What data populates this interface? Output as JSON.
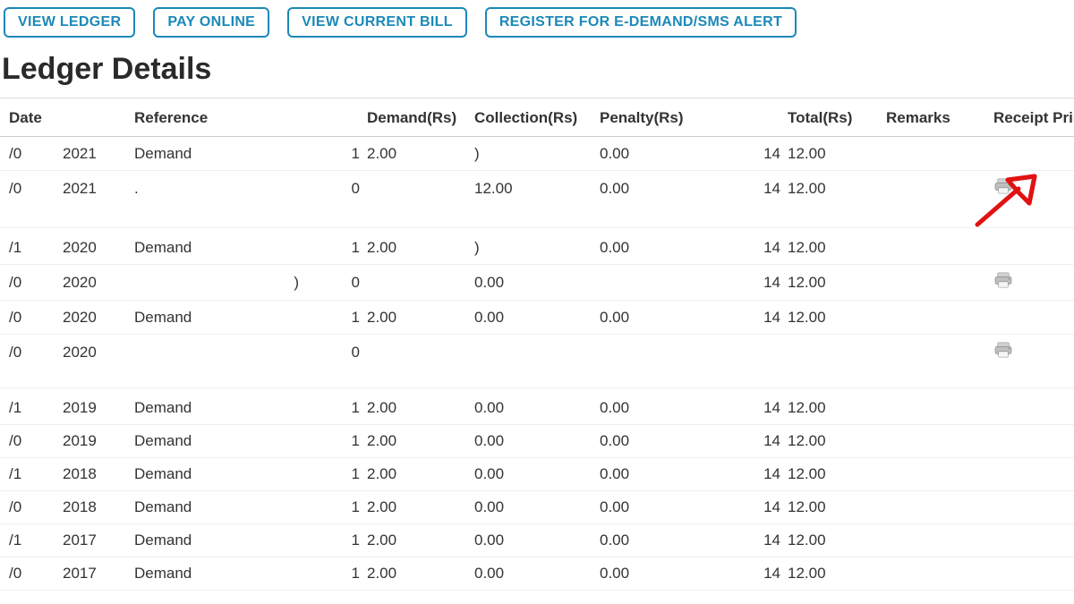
{
  "colors": {
    "button_border": "#1b89b8",
    "button_text": "#1b89b8",
    "arrow": "#e11212",
    "text": "#333333",
    "divider": "#dddddd"
  },
  "top_buttons": {
    "view_ledger": "VIEW LEDGER",
    "pay_online": "PAY ONLINE",
    "view_current_bill": "VIEW CURRENT BILL",
    "register_alert": "REGISTER FOR E-DEMAND/SMS ALERT"
  },
  "page_title": "Ledger Details",
  "table": {
    "headers": {
      "date": "Date",
      "reference": "Reference",
      "demand": "Demand(Rs)",
      "collection": "Collection(Rs)",
      "penalty": "Penalty(Rs)",
      "total": "Total(Rs)",
      "remarks": "Remarks",
      "receipt_print": "Receipt Print"
    },
    "rows": [
      {
        "d1": "/0",
        "d2": "2021",
        "ref": "Demand",
        "n1": "1",
        "demand": "2.00",
        "collection": ")",
        "penalty": "0.00",
        "t1": "14",
        "total": "12.00",
        "remarks": "",
        "print": false
      },
      {
        "d1": "/0",
        "d2": "2021",
        "ref": ".",
        "n1": "0",
        "demand": "",
        "collection": "12.00",
        "penalty": "0.00",
        "t1": "14",
        "total": "12.00",
        "remarks": "",
        "print": true,
        "arrow": true
      },
      {
        "d1": "/1",
        "d2": "2020",
        "ref": "Demand",
        "n1": "1",
        "demand": "2.00",
        "collection": ")",
        "penalty": "0.00",
        "t1": "14",
        "total": "12.00",
        "remarks": "",
        "print": false
      },
      {
        "d1": "/0",
        "d2": "2020",
        "ref": "",
        "n1": "0",
        "demand": "",
        "collection": "0.00",
        "penalty": "",
        "t1": "14",
        "total": "12.00",
        "remarks": "",
        "print": true,
        "refExtra": ")"
      },
      {
        "d1": "/0",
        "d2": "2020",
        "ref": "Demand",
        "n1": "1",
        "demand": "2.00",
        "collection": "0.00",
        "penalty": "0.00",
        "t1": "14",
        "total": "12.00",
        "remarks": "",
        "print": false
      },
      {
        "d1": "/0",
        "d2": "2020",
        "ref": "",
        "n1": "0",
        "demand": "",
        "collection": "",
        "penalty": "",
        "t1": "",
        "total": "",
        "remarks": "",
        "print": true
      },
      {
        "d1": "/1",
        "d2": "2019",
        "ref": "Demand",
        "n1": "1",
        "demand": "2.00",
        "collection": "0.00",
        "penalty": "0.00",
        "t1": "14",
        "total": "12.00",
        "remarks": "",
        "print": false
      },
      {
        "d1": "/0",
        "d2": "2019",
        "ref": "Demand",
        "n1": "1",
        "demand": "2.00",
        "collection": "0.00",
        "penalty": "0.00",
        "t1": "14",
        "total": "12.00",
        "remarks": "",
        "print": false
      },
      {
        "d1": "/1",
        "d2": "2018",
        "ref": "Demand",
        "n1": "1",
        "demand": "2.00",
        "collection": "0.00",
        "penalty": "0.00",
        "t1": "14",
        "total": "12.00",
        "remarks": "",
        "print": false
      },
      {
        "d1": "/0",
        "d2": "2018",
        "ref": "Demand",
        "n1": "1",
        "demand": "2.00",
        "collection": "0.00",
        "penalty": "0.00",
        "t1": "14",
        "total": "12.00",
        "remarks": "",
        "print": false
      },
      {
        "d1": "/1",
        "d2": "2017",
        "ref": "Demand",
        "n1": "1",
        "demand": "2.00",
        "collection": "0.00",
        "penalty": "0.00",
        "t1": "14",
        "total": "12.00",
        "remarks": "",
        "print": false
      },
      {
        "d1": "/0",
        "d2": "2017",
        "ref": "Demand",
        "n1": "1",
        "demand": "2.00",
        "collection": "0.00",
        "penalty": "0.00",
        "t1": "14",
        "total": "12.00",
        "remarks": "",
        "print": false
      }
    ]
  }
}
